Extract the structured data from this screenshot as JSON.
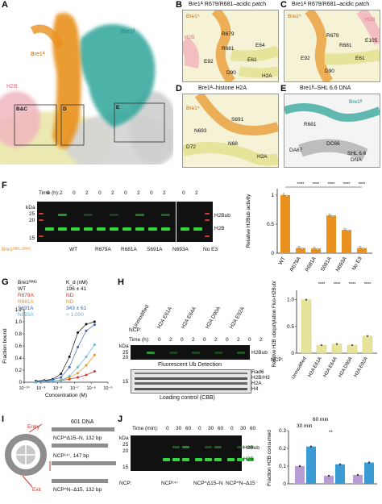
{
  "figure": {
    "panel_letters": [
      "A",
      "B",
      "C",
      "D",
      "E",
      "F",
      "G",
      "H",
      "I",
      "J"
    ],
    "panelA": {
      "labels": {
        "bre1b": "Bre1ᴮ",
        "bre1a": "Bre1ᴬ",
        "h2b": "H2B",
        "bc": "B&C",
        "d": "D",
        "e": "E"
      }
    },
    "panelB": {
      "title": "Bre1ᴬ R679/R681–acidic patch",
      "labels": [
        "Bre1ᴬ",
        "R679",
        "R681",
        "E64",
        "E61",
        "E92",
        "D90",
        "H2B",
        "H2A"
      ]
    },
    "panelC": {
      "title": "Bre1ᴬ R679/R681–acidic patch",
      "labels": [
        "Bre1ᴬ",
        "R679",
        "R681",
        "E105",
        "E61",
        "E92",
        "D90",
        "H2B"
      ]
    },
    "panelD": {
      "title": "Bre1ᴬ–histone H2A",
      "labels": [
        "Bre1ᴬ",
        "S691",
        "N693",
        "D72",
        "N68",
        "H2A"
      ]
    },
    "panelE": {
      "title": "Bre1ᴮ–SHL 6.6 DNA",
      "labels": [
        "Bre1ᴮ",
        "R681",
        "DA67",
        "DC66",
        "SHL 6.6",
        "DNA"
      ]
    },
    "panelF": {
      "time_label": "Time (h):",
      "times": [
        "0",
        "2",
        "0",
        "2",
        "0",
        "2",
        "0",
        "2",
        "0",
        "2",
        "0",
        "2"
      ],
      "kda_25": "25",
      "kda_20": "20",
      "kda_15": "15",
      "kda_unit": "kDa",
      "band_h2bub": "H2Bub",
      "band_h2b": "H2B",
      "construct": "Bre1ᴿᴮᴰ–ᴿᴵᴺᴳ:",
      "lanes": [
        "WT",
        "R679A",
        "R681A",
        "S691A",
        "N693A",
        "No E3"
      ],
      "bar_ylabel": "Relative H2Bub activity",
      "bar_categories": [
        "WT",
        "R679A",
        "R681A",
        "S691A",
        "N693A",
        "No E3"
      ],
      "bar_values": [
        1.0,
        0.09,
        0.08,
        0.65,
        0.4,
        0.09
      ],
      "yticks": [
        "0",
        "0.5",
        "1"
      ],
      "sig": "****"
    },
    "panelG": {
      "legend_title": "Bre1ᴿᴵᴺᴳ",
      "kd_header": "K_d (nM)",
      "series": [
        {
          "name": "WT",
          "kd": "196 ± 41",
          "color": "#111111"
        },
        {
          "name": "R679A",
          "kd": "ND",
          "color": "#d4342a"
        },
        {
          "name": "R681A",
          "kd": "ND",
          "color": "#e8951a"
        },
        {
          "name": "S691A",
          "kd": "343 ± 61",
          "color": "#3564b5"
        },
        {
          "name": "N693A",
          "kd": "> 1,000",
          "color": "#5fb6dd"
        }
      ],
      "ylabel": "Fraction bound",
      "xlabel": "Concentration (M)",
      "yticks": [
        "0",
        "0.2",
        "0.4",
        "0.6",
        "0.8",
        "1.0",
        "1.2"
      ],
      "xticks": [
        "10⁻¹⁰",
        "10⁻⁹",
        "10⁻⁸",
        "10⁻⁷",
        "10⁻⁶",
        "10⁻⁵"
      ],
      "chart_data": {
        "type": "scatter",
        "x_log10": [
          -9.3,
          -8.8,
          -8.3,
          -7.8,
          -7.3,
          -6.8,
          -6.3,
          -5.8
        ],
        "series": [
          {
            "name": "WT",
            "y": [
              0.02,
              0.03,
              0.05,
              0.14,
              0.42,
              0.82,
              0.96,
              1.0
            ]
          },
          {
            "name": "R679A",
            "y": [
              0.0,
              0.01,
              0.02,
              0.03,
              0.05,
              0.08,
              0.12,
              0.18
            ]
          },
          {
            "name": "R681A",
            "y": [
              0.0,
              0.01,
              0.02,
              0.04,
              0.08,
              0.15,
              0.28,
              0.45
            ]
          },
          {
            "name": "S691A",
            "y": [
              0.01,
              0.02,
              0.04,
              0.08,
              0.25,
              0.58,
              0.85,
              0.95
            ]
          },
          {
            "name": "N693A",
            "y": [
              0.0,
              0.01,
              0.02,
              0.03,
              0.1,
              0.25,
              0.42,
              0.62
            ]
          }
        ]
      }
    },
    "panelH": {
      "ncp_label": "NCP:",
      "columns": [
        "Unmodified",
        "H2A E61A",
        "H2A E64A",
        "H2A D90A",
        "H2A E92A"
      ],
      "time_label": "Time (h):",
      "times": [
        "0",
        "2",
        "0",
        "2",
        "0",
        "2",
        "0",
        "2",
        "0",
        "2"
      ],
      "kda_unit": "kDa",
      "kda_25": "25",
      "kda_20": "20",
      "kda_15": "15",
      "band_h2bub": "H2Bub",
      "fluor_caption": "Fluorescent Ub Detection",
      "cbb_bands": [
        "Rad6",
        "H2B/H3",
        "H2A",
        "H4"
      ],
      "cbb_caption": "Loading control (CBB)",
      "bar_ylabel": "Relative H2B ubiquitylation Fluo-H2Bub/H4",
      "bar_categories": [
        "Unmodified",
        "H2A E61A",
        "H2A E64A",
        "H2A D90A",
        "H2A E92A"
      ],
      "bar_values": [
        1.0,
        0.15,
        0.17,
        0.15,
        0.32
      ],
      "yticks": [
        "0",
        "0.5",
        "1.0"
      ],
      "sig": "****"
    },
    "panelI": {
      "title": "601 DNA",
      "entry": "Entry",
      "exit": "Exit",
      "constructs": [
        "NCP^Δ15–N, 132 bp",
        "NCP¹⁴⁷, 147 bp",
        "NCP^N–Δ15, 132 bp"
      ]
    },
    "panelJ": {
      "time_label": "Time (min):",
      "times": [
        "0",
        "30",
        "60",
        "0",
        "30",
        "60",
        "0",
        "30",
        "60"
      ],
      "kda_unit": "kDa",
      "kda_25": "25",
      "kda_20": "20",
      "kda_15": "15",
      "band_h2bub": "H2Bub",
      "band_h2b": "H2B",
      "ncp_label": "NCP:",
      "lanes": [
        "NCP¹⁴⁷",
        "NCP^Δ15–N",
        "NCP^N–Δ15"
      ],
      "bar_ylabel": "Fraction H2B consumed",
      "legend_60": "60 min",
      "legend_30": "30 min",
      "chart_data": {
        "type": "bar",
        "categories": [
          "NCP147",
          "NCPΔ15-N",
          "NCPN-Δ15"
        ],
        "series": [
          {
            "name": "30 min",
            "values": [
              0.1,
              0.045,
              0.05
            ]
          },
          {
            "name": "60 min",
            "values": [
              0.21,
              0.11,
              0.12
            ]
          }
        ],
        "ylim": [
          0,
          0.3
        ]
      },
      "yticks": [
        "0",
        "0.1",
        "0.2",
        "0.3"
      ],
      "sig": "**"
    }
  }
}
